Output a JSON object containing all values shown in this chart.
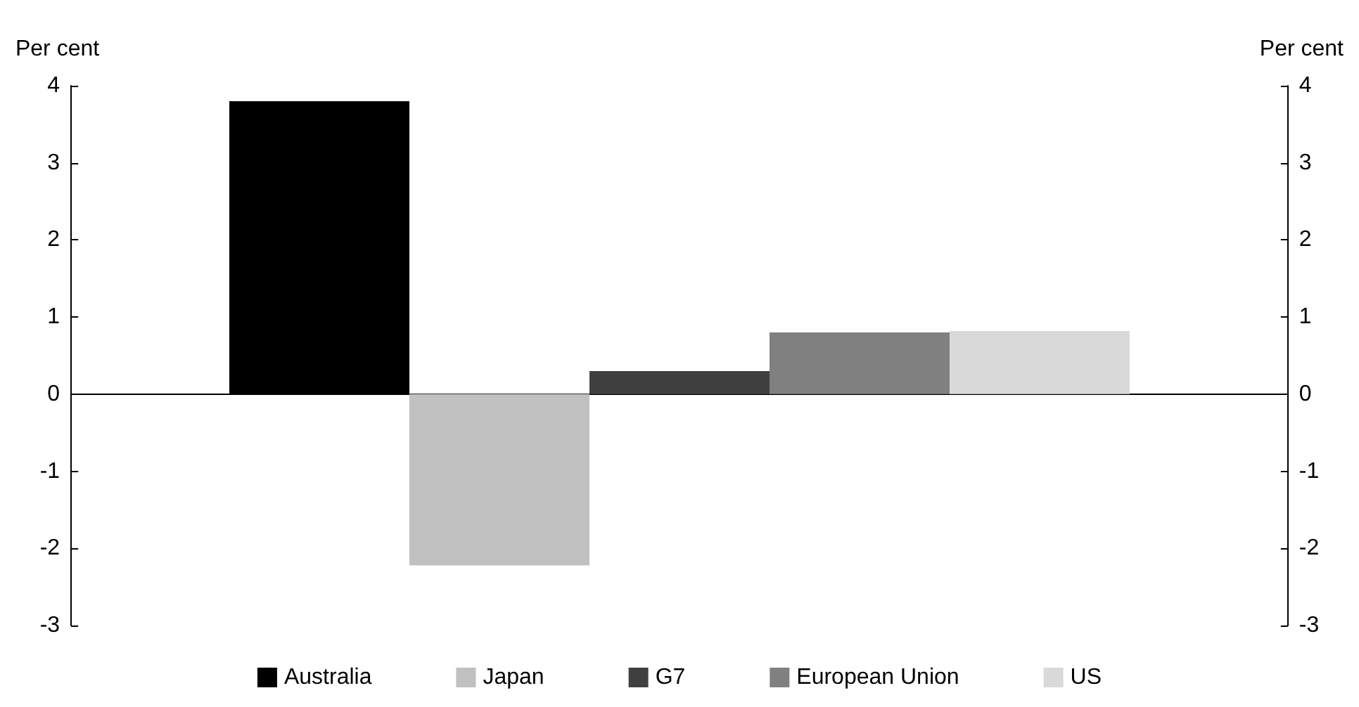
{
  "chart_data": {
    "type": "bar",
    "ylabel": "Per cent",
    "y2label": "Per cent",
    "categories": [
      null
    ],
    "series": [
      {
        "name": "Australia",
        "color": "#000000",
        "values": [
          3.8
        ]
      },
      {
        "name": "Japan",
        "color": "#c0c0c0",
        "values": [
          -2.22
        ]
      },
      {
        "name": "G7",
        "color": "#404040",
        "values": [
          0.3
        ]
      },
      {
        "name": "European Union",
        "color": "#808080",
        "values": [
          0.8
        ]
      },
      {
        "name": "US",
        "color": "#d9d9d9",
        "values": [
          0.82
        ]
      }
    ],
    "ylim": [
      -3,
      4
    ],
    "yticks": [
      -3,
      -2,
      -1,
      0,
      1,
      2,
      3,
      4
    ],
    "y2lim": [
      -3,
      4
    ],
    "y2ticks": [
      -3,
      -2,
      -1,
      0,
      1,
      2,
      3,
      4
    ],
    "legend": "bottom"
  }
}
